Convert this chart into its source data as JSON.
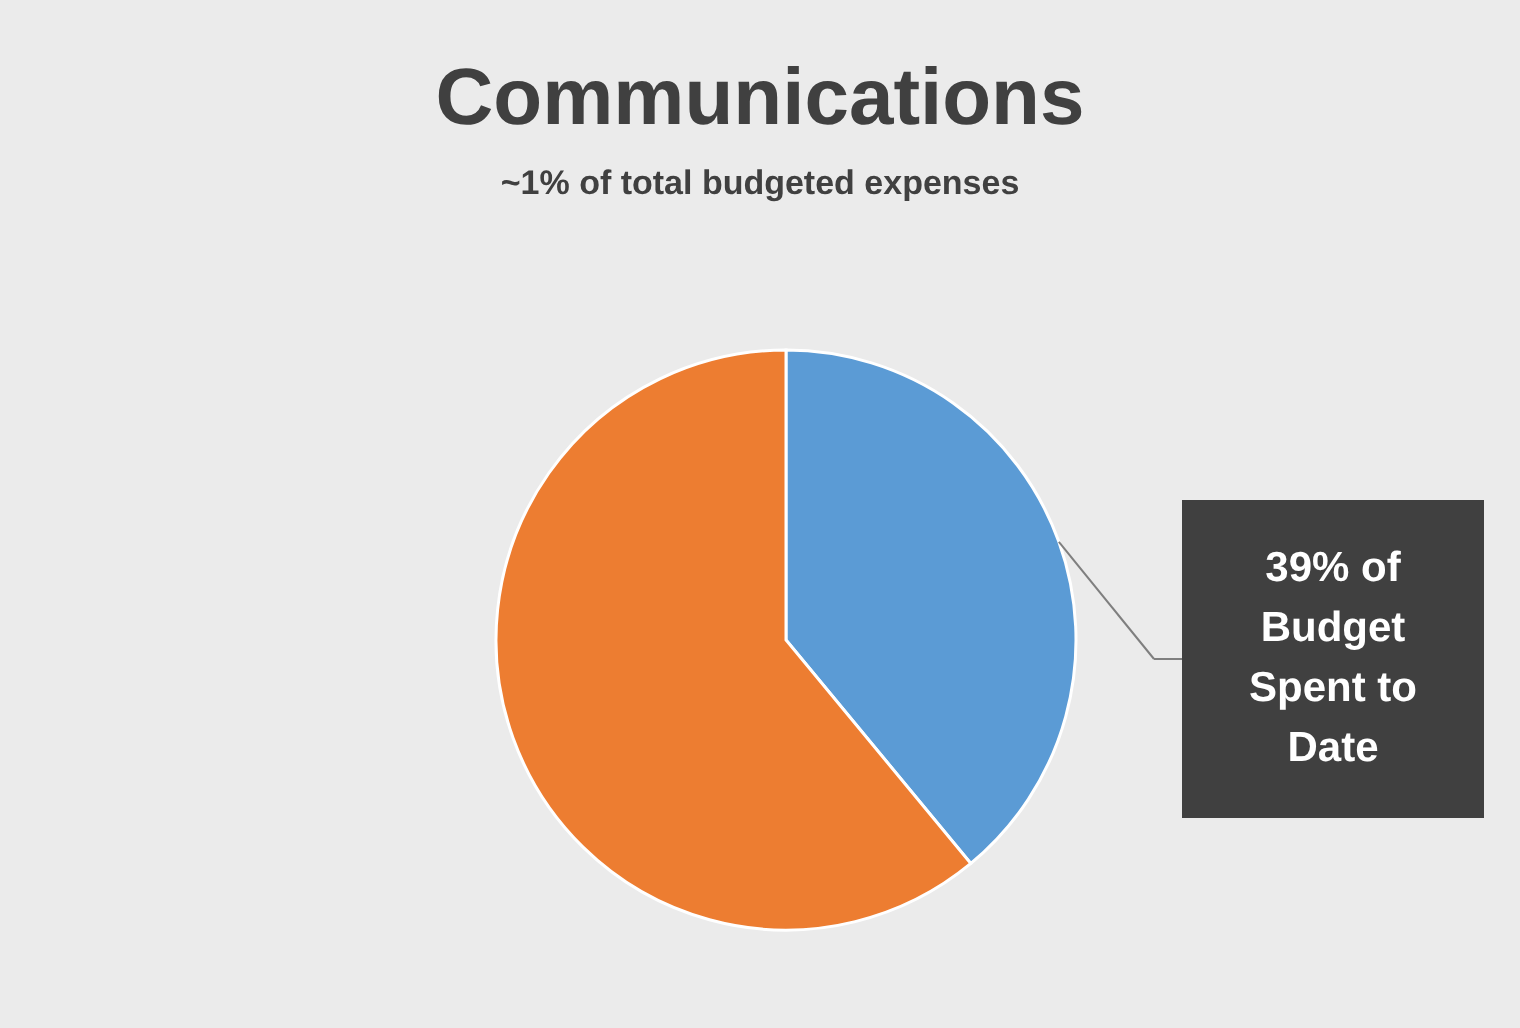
{
  "chart_data": {
    "type": "pie",
    "title": "Communications",
    "subtitle": "~1% of total budgeted expenses",
    "categories": [
      null,
      null
    ],
    "values": [
      39,
      61
    ],
    "colors": [
      "#5b9bd5",
      "#ed7d31"
    ],
    "value_labels": [
      "39% of Budget Spent to Date",
      null
    ],
    "legend": false
  }
}
